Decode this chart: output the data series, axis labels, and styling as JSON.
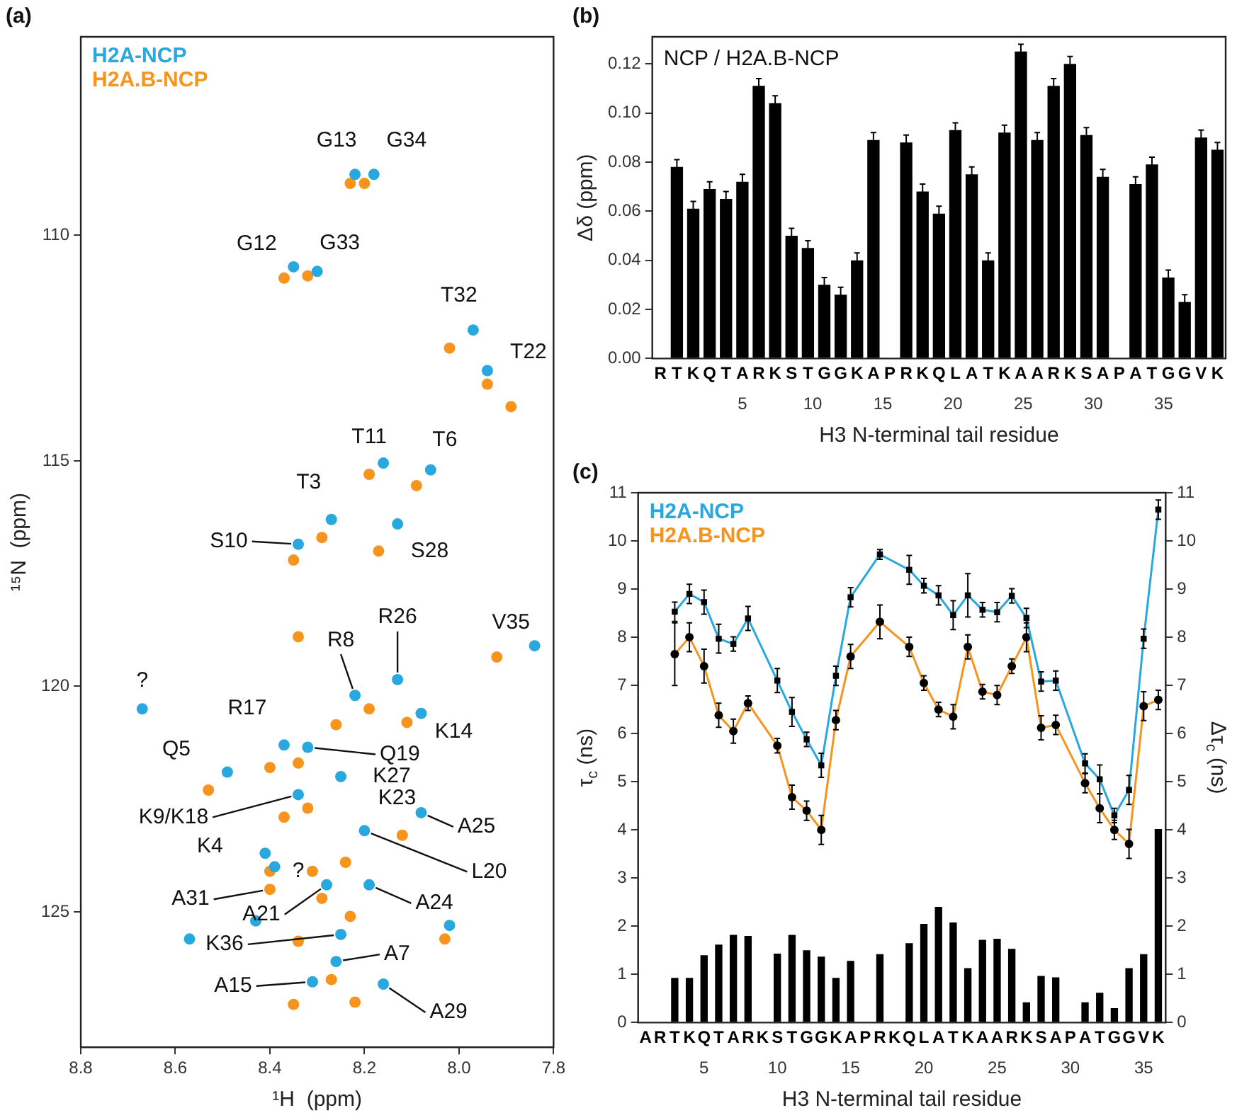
{
  "chart_data": [
    {
      "type": "scatter",
      "title": "(a)",
      "xlabel": "¹H  (ppm)",
      "ylabel": "¹⁵N  (ppm)",
      "xlim": [
        8.8,
        7.8
      ],
      "ylim": [
        128,
        105.6
      ],
      "xticks": [
        8.8,
        8.6,
        8.4,
        8.2,
        {
          "value": 8,
          "label": "8.0"
        },
        7.8
      ],
      "yticks": [
        110,
        115,
        120,
        125
      ],
      "grid": false,
      "legend": "top left",
      "marker": "circle",
      "series": [
        {
          "name": "H2A-NCP",
          "color": "#29a8e0",
          "x": [
            8.22,
            8.18,
            8.35,
            8.3,
            7.97,
            7.94,
            8.16,
            8.06,
            8.27,
            8.13,
            8.34,
            7.84,
            8.67,
            8.13,
            8.22,
            8.08,
            8.37,
            8.32,
            8.49,
            8.25,
            8.34,
            8.08,
            8.2,
            8.41,
            8.39,
            8.28,
            8.19,
            8.43,
            8.57,
            8.02,
            8.25,
            8.26,
            8.31,
            8.16
          ],
          "values": [
            108.65,
            108.65,
            110.7,
            110.8,
            112.1,
            113.0,
            115.05,
            115.2,
            116.3,
            116.4,
            116.85,
            119.1,
            120.5,
            119.85,
            120.2,
            120.6,
            121.3,
            121.35,
            121.9,
            122.0,
            122.4,
            122.8,
            123.2,
            123.7,
            124.0,
            124.4,
            124.4,
            125.2,
            125.6,
            125.3,
            125.5,
            126.1,
            126.55,
            126.6
          ]
        },
        {
          "name": "H2A.B-NCP",
          "color": "#f7941d",
          "x": [
            8.23,
            8.2,
            8.37,
            8.32,
            8.02,
            7.94,
            7.89,
            8.19,
            8.09,
            8.29,
            8.17,
            8.35,
            7.92,
            8.26,
            8.19,
            8.11,
            8.4,
            8.34,
            8.53,
            8.37,
            8.32,
            8.12,
            8.4,
            8.4,
            8.24,
            8.31,
            8.29,
            8.23,
            8.03,
            8.34,
            8.27,
            8.35,
            8.22,
            8.34
          ],
          "values": [
            108.85,
            108.85,
            110.95,
            110.9,
            112.5,
            113.3,
            113.8,
            115.3,
            115.55,
            116.7,
            117.0,
            117.2,
            119.35,
            120.85,
            120.5,
            120.8,
            121.8,
            121.7,
            122.3,
            122.9,
            122.7,
            123.3,
            124.1,
            124.5,
            123.9,
            124.1,
            124.7,
            125.1,
            125.6,
            125.65,
            126.5,
            127.05,
            127.0,
            118.9
          ]
        }
      ],
      "annotations": [
        {
          "text": "G13",
          "x": 8.22,
          "y": 108.65
        },
        {
          "text": "G34",
          "x": 8.18,
          "y": 108.65
        },
        {
          "text": "G12",
          "x": 8.35,
          "y": 110.7
        },
        {
          "text": "G33",
          "x": 8.3,
          "y": 110.8
        },
        {
          "text": "T32",
          "x": 7.97,
          "y": 112.1
        },
        {
          "text": "T22",
          "x": 7.94,
          "y": 113.0
        },
        {
          "text": "T11",
          "x": 8.16,
          "y": 115.05
        },
        {
          "text": "T6",
          "x": 8.06,
          "y": 115.2
        },
        {
          "text": "T3",
          "x": 8.27,
          "y": 116.3
        },
        {
          "text": "S10",
          "x": 8.34,
          "y": 116.85
        },
        {
          "text": "S28",
          "x": 8.17,
          "y": 117.0
        },
        {
          "text": "V35",
          "x": 7.92,
          "y": 119.35
        },
        {
          "text": "?",
          "x": 8.67,
          "y": 120.5
        },
        {
          "text": "R26",
          "x": 8.13,
          "y": 119.85
        },
        {
          "text": "R8",
          "x": 8.22,
          "y": 120.2
        },
        {
          "text": "K14",
          "x": 8.08,
          "y": 120.6
        },
        {
          "text": "R17",
          "x": 8.37,
          "y": 121.3
        },
        {
          "text": "Q5",
          "x": 8.49,
          "y": 121.9
        },
        {
          "text": "Q19",
          "x": 8.32,
          "y": 121.35
        },
        {
          "text": "K27",
          "x": 8.25,
          "y": 122.0
        },
        {
          "text": "K23",
          "x": 8.2,
          "y": 123.2
        },
        {
          "text": "K9/K18",
          "x": 8.34,
          "y": 122.4
        },
        {
          "text": "A25",
          "x": 8.08,
          "y": 122.8
        },
        {
          "text": "K4",
          "x": 8.41,
          "y": 123.7
        },
        {
          "text": "L20",
          "x": 8.2,
          "y": 123.2
        },
        {
          "text": "?",
          "x": 8.31,
          "y": 124.1
        },
        {
          "text": "A31",
          "x": 8.4,
          "y": 124.5
        },
        {
          "text": "A24",
          "x": 8.19,
          "y": 124.4
        },
        {
          "text": "A21",
          "x": 8.28,
          "y": 124.4
        },
        {
          "text": "K36",
          "x": 8.25,
          "y": 125.5
        },
        {
          "text": "A7",
          "x": 8.26,
          "y": 126.1
        },
        {
          "text": "A15",
          "x": 8.31,
          "y": 126.55
        },
        {
          "text": "A29",
          "x": 8.16,
          "y": 126.6
        }
      ]
    },
    {
      "type": "bar",
      "title": "(b)",
      "xlabel": "H3 N-terminal tail residue",
      "ylabel": "Δδ (ppm)",
      "color": "#000000",
      "categories": [
        "R",
        "T",
        "K",
        "Q",
        "T",
        "A",
        "R",
        "K",
        "S",
        "T",
        "G",
        "G",
        "K",
        "A",
        "P",
        "R",
        "K",
        "Q",
        "L",
        "A",
        "T",
        "K",
        "A",
        "A",
        "R",
        "K",
        "S",
        "A",
        "P",
        "A",
        "T",
        "G",
        "G",
        "V",
        "K"
      ],
      "values": [
        null,
        0.078,
        0.061,
        0.069,
        0.065,
        0.072,
        0.111,
        0.104,
        0.05,
        0.045,
        0.03,
        0.026,
        0.04,
        0.089,
        null,
        0.088,
        0.068,
        0.059,
        0.093,
        0.075,
        0.04,
        0.092,
        0.125,
        0.089,
        0.111,
        0.12,
        0.091,
        0.074,
        null,
        0.071,
        0.079,
        0.033,
        0.023,
        0.09,
        0.085
      ],
      "errors": [
        null,
        0.003,
        0.003,
        0.003,
        0.003,
        0.003,
        0.003,
        0.003,
        0.003,
        0.003,
        0.003,
        0.003,
        0.003,
        0.003,
        null,
        0.003,
        0.003,
        0.003,
        0.003,
        0.003,
        0.003,
        0.003,
        0.003,
        0.003,
        0.003,
        0.003,
        0.003,
        0.003,
        null,
        0.003,
        0.003,
        0.003,
        0.003,
        0.003,
        0.003
      ],
      "ylim": [
        0,
        0.131
      ],
      "yticks": [
        {
          "value": 0,
          "label": "0.00"
        },
        {
          "value": 0.02,
          "label": "0.02"
        },
        {
          "value": 0.04,
          "label": "0.04"
        },
        {
          "value": 0.06,
          "label": "0.06"
        },
        {
          "value": 0.08,
          "label": "0.08"
        },
        {
          "value": 0.1,
          "label": "0.10"
        },
        {
          "value": 0.12,
          "label": "0.12"
        }
      ],
      "x2lim": [
        1.5,
        36.5
      ],
      "x2ticks": [
        5,
        10,
        15,
        20,
        25,
        30,
        35
      ],
      "grid": false,
      "annotations": [
        "NCP / H2A.B-NCP"
      ]
    },
    {
      "type": "line",
      "title": "(c)",
      "xlabel": "H3 N-terminal tail residue",
      "ylabel": "τ$_{c}$ (ns)",
      "y2label": "Δτ$_{c}$ (ns)",
      "legend": "top left",
      "grid": false,
      "categories": [
        "A",
        "R",
        "T",
        "K",
        "Q",
        "T",
        "A",
        "R",
        "K",
        "S",
        "T",
        "G",
        "G",
        "K",
        "A",
        "P",
        "R",
        "K",
        "Q",
        "L",
        "A",
        "T",
        "K",
        "A",
        "A",
        "R",
        "K",
        "S",
        "A",
        "P",
        "A",
        "T",
        "G",
        "G",
        "V",
        "K"
      ],
      "series": [
        {
          "name": "H2A-NCP",
          "color": "#29a8e0",
          "marker": "square",
          "values": [
            null,
            null,
            8.53,
            8.9,
            8.73,
            7.97,
            7.86,
            8.39,
            null,
            7.1,
            6.45,
            5.88,
            5.34,
            7.2,
            8.83,
            null,
            9.72,
            null,
            9.4,
            9.07,
            8.87,
            8.46,
            8.87,
            8.57,
            8.52,
            8.86,
            8.4,
            7.08,
            7.1,
            null,
            5.38,
            5.05,
            4.3,
            4.83,
            7.97,
            10.65
          ],
          "errors": [
            null,
            null,
            0.2,
            0.2,
            0.25,
            0.3,
            0.15,
            0.25,
            null,
            0.25,
            0.3,
            0.15,
            0.25,
            0.2,
            0.2,
            null,
            0.1,
            null,
            0.3,
            0.15,
            0.2,
            0.3,
            0.45,
            0.15,
            0.2,
            0.15,
            0.2,
            0.2,
            0.2,
            null,
            0.2,
            0.3,
            0.15,
            0.3,
            0.2,
            0.2
          ]
        },
        {
          "name": "H2A.B-NCP",
          "color": "#f7941d",
          "marker": "circle",
          "values": [
            null,
            null,
            7.65,
            8.0,
            7.4,
            6.38,
            6.05,
            6.63,
            null,
            5.75,
            4.68,
            4.4,
            4.0,
            6.28,
            7.6,
            null,
            8.32,
            null,
            7.8,
            7.05,
            6.5,
            6.35,
            7.8,
            6.87,
            6.8,
            7.4,
            8.0,
            6.12,
            6.18,
            null,
            4.97,
            4.45,
            4.0,
            3.71,
            6.57,
            6.7
          ],
          "errors": [
            null,
            null,
            0.65,
            0.3,
            0.35,
            0.25,
            0.25,
            0.15,
            null,
            0.15,
            0.25,
            0.2,
            0.3,
            0.2,
            0.25,
            null,
            0.35,
            null,
            0.2,
            0.15,
            0.15,
            0.25,
            0.25,
            0.15,
            0.2,
            0.15,
            0.3,
            0.25,
            0.2,
            null,
            0.2,
            0.3,
            0.2,
            0.3,
            0.3,
            0.2
          ]
        },
        {
          "type": "bar",
          "axis": "y2",
          "color": "#000000",
          "values": [
            null,
            null,
            0.93,
            0.93,
            1.4,
            1.62,
            1.82,
            1.8,
            null,
            1.43,
            1.82,
            1.5,
            1.37,
            0.93,
            1.28,
            null,
            1.42,
            null,
            1.65,
            2.05,
            2.4,
            2.08,
            1.13,
            1.72,
            1.74,
            1.53,
            0.42,
            0.97,
            0.94,
            null,
            0.42,
            0.62,
            0.3,
            1.13,
            1.42,
            4.02
          ]
        }
      ],
      "ylim": [
        0,
        11
      ],
      "yticks": [
        0,
        1,
        2,
        3,
        4,
        5,
        6,
        7,
        8,
        9,
        10,
        11
      ],
      "y2lim": [
        0,
        11
      ],
      "y2ticks": [
        0,
        1,
        2,
        3,
        4,
        5,
        6,
        7,
        8,
        9,
        10,
        11
      ],
      "x2lim": [
        0.5,
        36.5
      ],
      "x2ticks": [
        5,
        10,
        15,
        20,
        25,
        30,
        35
      ]
    }
  ]
}
